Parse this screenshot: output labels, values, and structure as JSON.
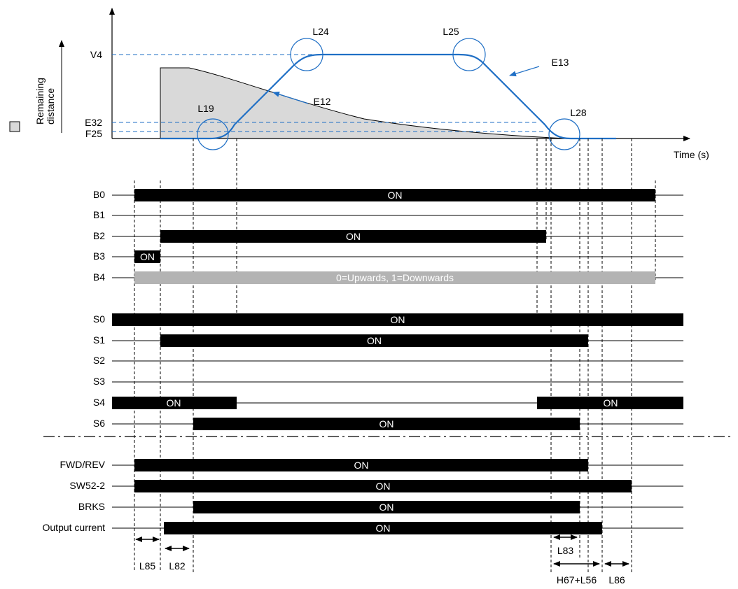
{
  "chart": {
    "y_markers": [
      "V4",
      "E32",
      "F25"
    ],
    "time_label": "Time (s)",
    "remaining_label_line1": "Remaining",
    "remaining_label_line2": "distance",
    "callouts": [
      "L24",
      "L25",
      "L19",
      "L28"
    ],
    "curve_labels": [
      "E12",
      "E13"
    ],
    "colors": {
      "speed_curve": "#1f6fc5",
      "remaining_fill": "#d9d9d9",
      "guide": "#1f6fc5"
    }
  },
  "signals": [
    {
      "name": "B0",
      "segments": [
        {
          "label": "ON",
          "color": "black"
        }
      ]
    },
    {
      "name": "B1",
      "segments": []
    },
    {
      "name": "B2",
      "segments": [
        {
          "label": "ON",
          "color": "black"
        }
      ]
    },
    {
      "name": "B3",
      "segments": [
        {
          "label": "ON",
          "color": "black"
        }
      ]
    },
    {
      "name": "B4",
      "segments": [
        {
          "label": "0=Upwards, 1=Downwards",
          "color": "gray"
        }
      ]
    },
    {
      "name": "S0",
      "segments": [
        {
          "label": "ON",
          "color": "black"
        }
      ]
    },
    {
      "name": "S1",
      "segments": [
        {
          "label": "ON",
          "color": "black"
        }
      ]
    },
    {
      "name": "S2",
      "segments": []
    },
    {
      "name": "S3",
      "segments": []
    },
    {
      "name": "S4",
      "segments": [
        {
          "label": "ON",
          "color": "black"
        },
        {
          "label": "ON",
          "color": "black"
        }
      ]
    },
    {
      "name": "S6",
      "segments": [
        {
          "label": "ON",
          "color": "black"
        }
      ]
    },
    {
      "name": "FWD/REV",
      "segments": [
        {
          "label": "ON",
          "color": "black"
        }
      ]
    },
    {
      "name": "SW52-2",
      "segments": [
        {
          "label": "ON",
          "color": "black"
        }
      ]
    },
    {
      "name": "BRKS",
      "segments": [
        {
          "label": "ON",
          "color": "black"
        }
      ]
    },
    {
      "name": "Output current",
      "segments": [
        {
          "label": "ON",
          "color": "black"
        }
      ]
    }
  ],
  "intervals": [
    "L85",
    "L82",
    "L83",
    "H67+L56",
    "L86"
  ]
}
